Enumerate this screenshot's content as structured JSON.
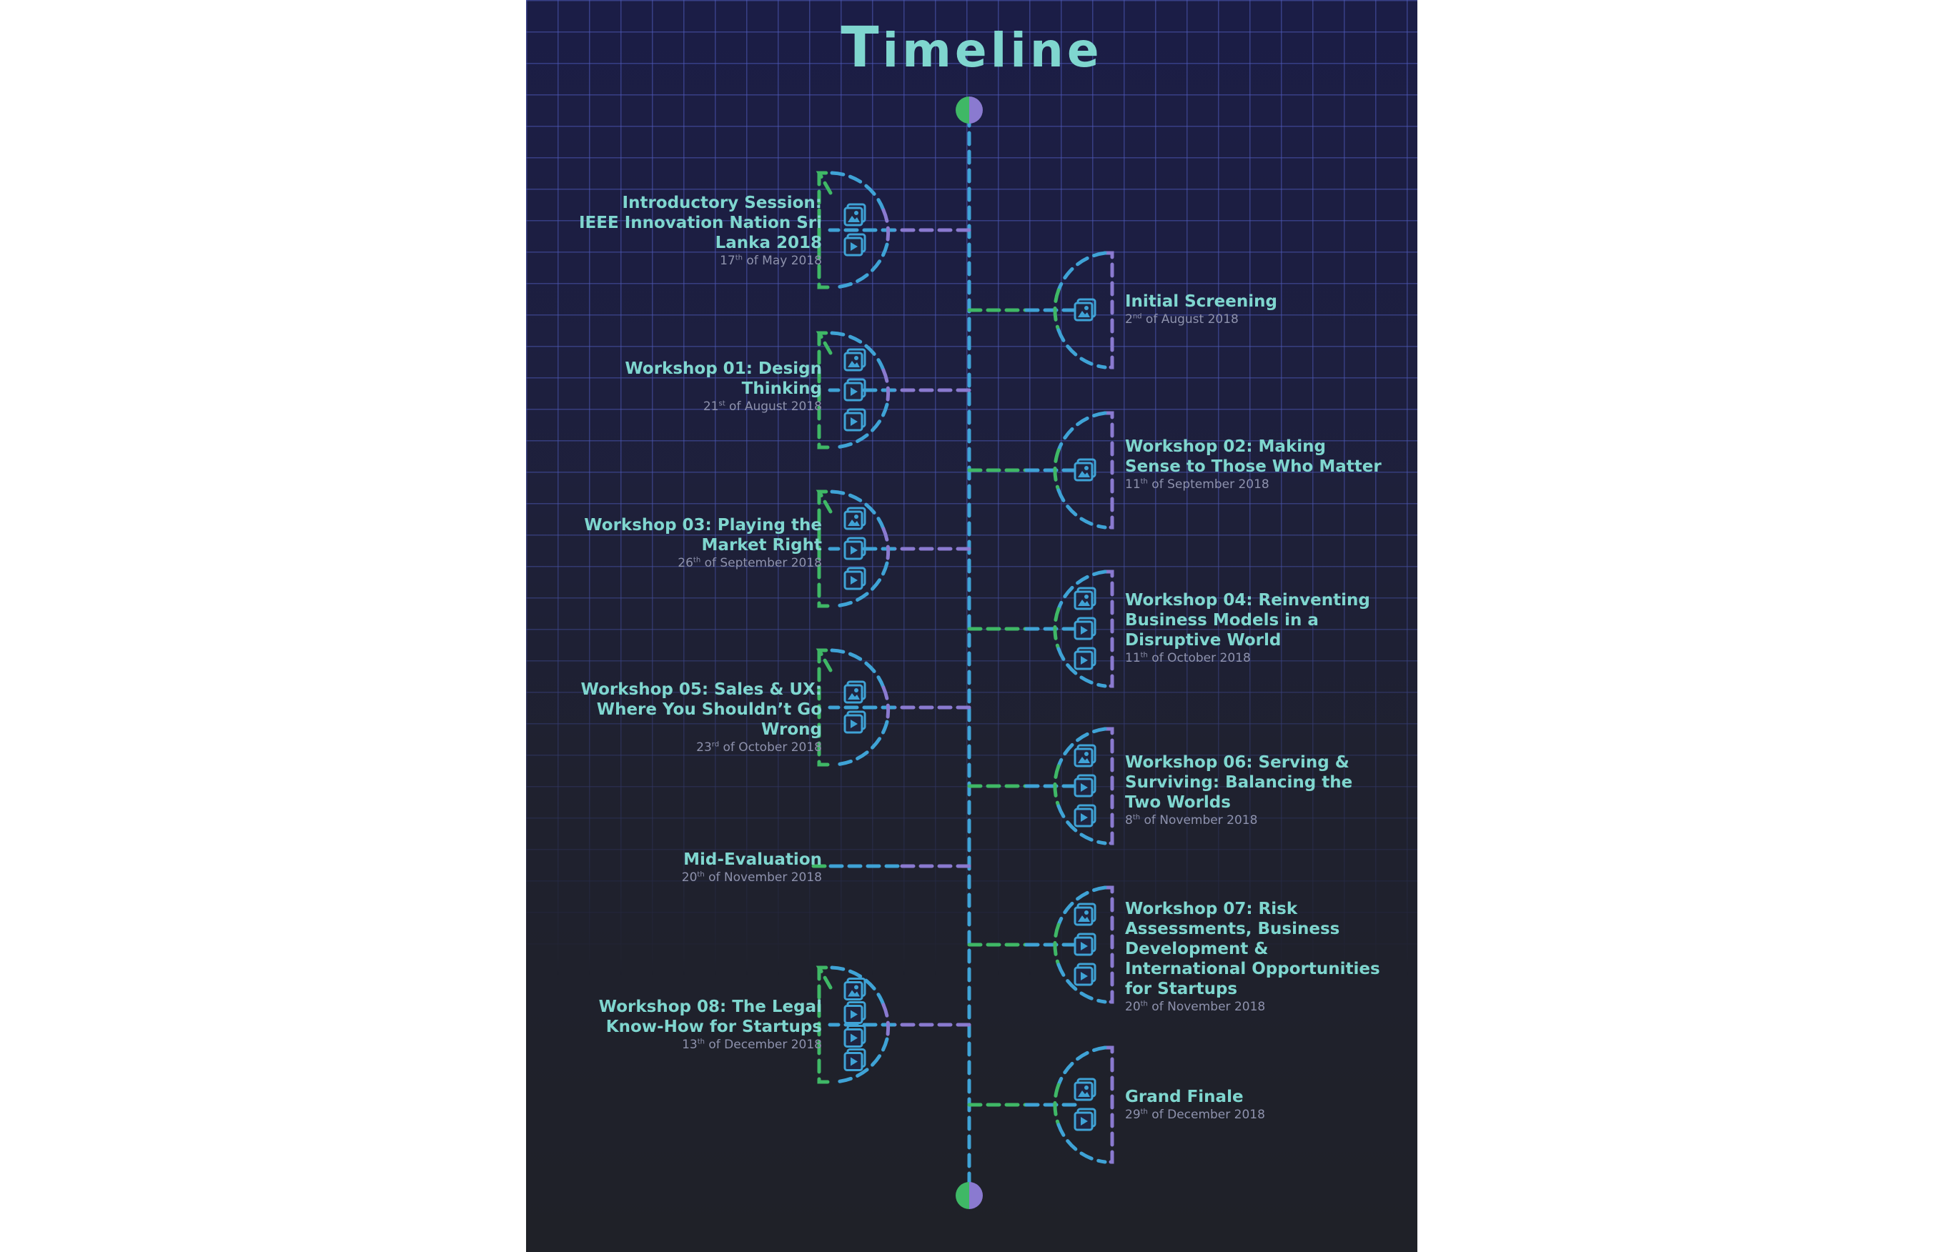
{
  "title": "Timeline",
  "colors": {
    "teal": "#7fd6cf",
    "blue": "#3fa3d6",
    "green": "#3fb866",
    "purple": "#8a7ad0",
    "background": "#1f2128"
  },
  "events": [
    {
      "title": "Introductory Session: IEEE Innovation Nation Sri Lanka 2018",
      "day": "17",
      "suffix": "th",
      "rest": " of May 2018",
      "side": "left",
      "icons": [
        "image-icon",
        "video-icon"
      ]
    },
    {
      "title": "Initial Screening",
      "day": "2",
      "suffix": "nd",
      "rest": " of August 2018",
      "side": "right",
      "icons": [
        "image-icon"
      ]
    },
    {
      "title": "Workshop 01: Design Thinking",
      "day": "21",
      "suffix": "st",
      "rest": " of August 2018",
      "side": "left",
      "icons": [
        "image-icon",
        "video-icon",
        "video-icon"
      ]
    },
    {
      "title": "Workshop 02: Making Sense to Those Who Matter",
      "day": "11",
      "suffix": "th",
      "rest": " of September 2018",
      "side": "right",
      "icons": [
        "image-icon"
      ]
    },
    {
      "title": "Workshop 03: Playing the Market Right",
      "day": "26",
      "suffix": "th",
      "rest": " of September 2018",
      "side": "left",
      "icons": [
        "image-icon",
        "video-icon",
        "video-icon"
      ]
    },
    {
      "title": "Workshop 04: Reinventing Business Models in a Disruptive World",
      "day": "11",
      "suffix": "th",
      "rest": " of October 2018",
      "side": "right",
      "icons": [
        "image-icon",
        "video-icon",
        "video-icon"
      ]
    },
    {
      "title": "Workshop 05: Sales & UX: Where You Shouldn’t Go Wrong",
      "day": "23",
      "suffix": "rd",
      "rest": " of October 2018",
      "side": "left",
      "icons": [
        "image-icon",
        "video-icon"
      ]
    },
    {
      "title": "Workshop 06: Serving & Surviving: Balancing the Two Worlds",
      "day": "8",
      "suffix": "th",
      "rest": " of November 2018",
      "side": "right",
      "icons": [
        "image-icon",
        "video-icon",
        "video-icon"
      ]
    },
    {
      "title": "Mid-Evaluation",
      "day": "20",
      "suffix": "th",
      "rest": " of November 2018",
      "side": "left",
      "icons": []
    },
    {
      "title": "Workshop 07: Risk Assessments, Business Development & International Opportunities for Startups",
      "day": "20",
      "suffix": "th",
      "rest": " of November 2018",
      "side": "right",
      "icons": [
        "image-icon",
        "video-icon",
        "video-icon"
      ]
    },
    {
      "title": "Workshop 08: The Legal Know-How for Startups",
      "day": "13",
      "suffix": "th",
      "rest": " of December 2018",
      "side": "left",
      "icons": [
        "image-icon",
        "video-icon",
        "video-icon",
        "video-icon"
      ]
    },
    {
      "title": "Grand Finale",
      "day": "29",
      "suffix": "th",
      "rest": " of December 2018",
      "side": "right",
      "icons": [
        "image-icon",
        "video-icon"
      ]
    }
  ]
}
